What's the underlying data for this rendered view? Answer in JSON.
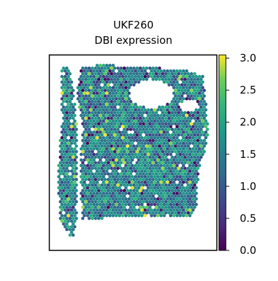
{
  "chart_data": {
    "type": "scatter",
    "title": "UKF260\nDBI expression",
    "title_lines": [
      "UKF260",
      "DBI expression"
    ],
    "xlabel": "",
    "ylabel": "",
    "grid": false,
    "colormap": "viridis",
    "color_range": [
      0.0,
      3.05
    ],
    "colorbar_ticks": [
      "0.0",
      "0.5",
      "1.0",
      "1.5",
      "2.0",
      "2.5",
      "3.0"
    ],
    "colorbar_tick_values": [
      0.0,
      0.5,
      1.0,
      1.5,
      2.0,
      2.5,
      3.0
    ],
    "point_description": "hexagonal spatial spots, colored by DBI expression (mostly 1.5–2.5)"
  }
}
